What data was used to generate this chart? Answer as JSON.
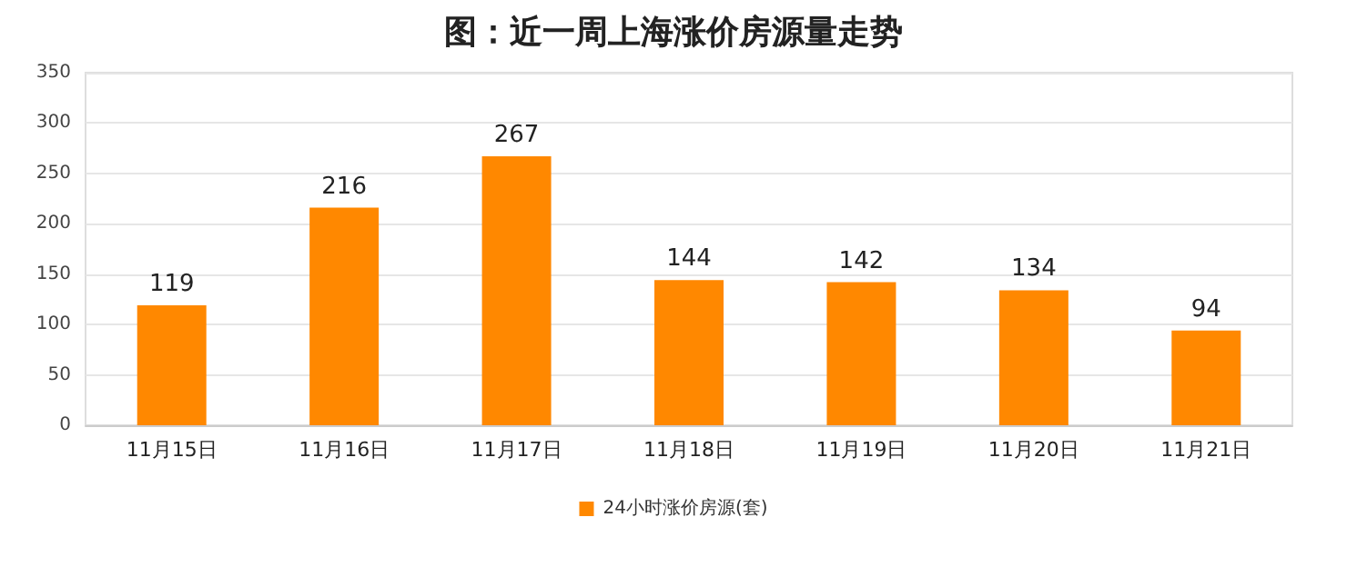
{
  "chart_data": {
    "type": "bar",
    "title": "图：近一周上海涨价房源量走势",
    "categories": [
      "11月15日",
      "11月16日",
      "11月17日",
      "11月18日",
      "11月19日",
      "11月20日",
      "11月21日"
    ],
    "series": [
      {
        "name": "24小时涨价房源(套)",
        "color": "#ff8800",
        "values": [
          119,
          216,
          267,
          144,
          142,
          134,
          94
        ]
      }
    ],
    "ylim": [
      0,
      350
    ],
    "yticks": [
      0,
      50,
      100,
      150,
      200,
      250,
      300,
      350
    ],
    "grid": "y",
    "legend": "bottom",
    "data_labels": true
  }
}
